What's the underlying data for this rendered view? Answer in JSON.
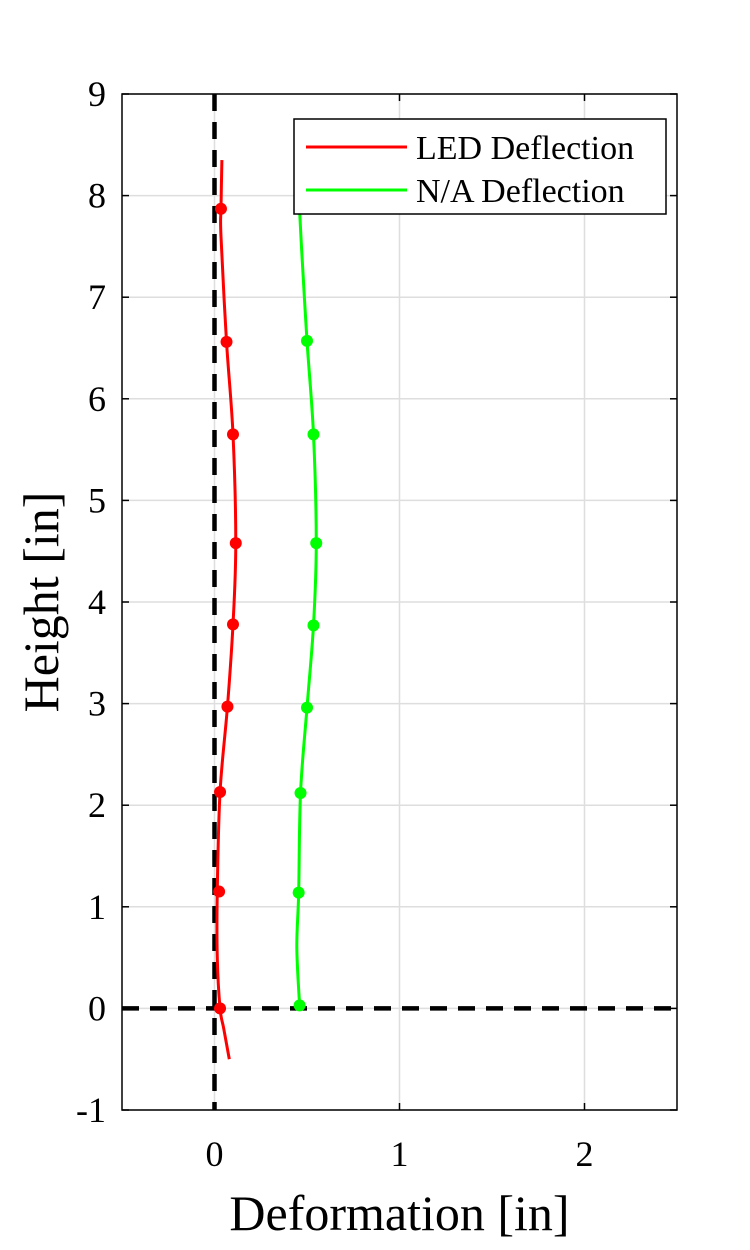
{
  "chart_data": {
    "type": "line",
    "title": "",
    "xlabel": "Deformation [in]",
    "ylabel": "Height [in]",
    "xlim": [
      -0.5,
      2.5
    ],
    "ylim": [
      -1,
      9
    ],
    "xticks": [
      0,
      1,
      2
    ],
    "yticks": [
      -1,
      0,
      1,
      2,
      3,
      4,
      5,
      6,
      7,
      8,
      9
    ],
    "grid": true,
    "legend_position": "top-right",
    "reference_lines": [
      {
        "orientation": "vertical",
        "value": 0,
        "style": "dashed",
        "color": "#000000"
      },
      {
        "orientation": "horizontal",
        "value": 0,
        "style": "dashed",
        "color": "#000000"
      }
    ],
    "series": [
      {
        "name": "LED Deflection",
        "color": "#ff0000",
        "curve": [
          {
            "x": 0.08,
            "y": -0.5
          },
          {
            "x": 0.05,
            "y": -0.2
          },
          {
            "x": 0.03,
            "y": 0.0
          },
          {
            "x": 0.015,
            "y": 0.5
          },
          {
            "x": 0.015,
            "y": 1.15
          },
          {
            "x": 0.03,
            "y": 2.13
          },
          {
            "x": 0.07,
            "y": 2.97
          },
          {
            "x": 0.1,
            "y": 3.78
          },
          {
            "x": 0.115,
            "y": 4.58
          },
          {
            "x": 0.1,
            "y": 5.65
          },
          {
            "x": 0.065,
            "y": 6.56
          },
          {
            "x": 0.035,
            "y": 7.6
          },
          {
            "x": 0.035,
            "y": 7.87
          },
          {
            "x": 0.04,
            "y": 8.35
          }
        ],
        "points": [
          {
            "x": 0.03,
            "y": 0.0
          },
          {
            "x": 0.025,
            "y": 1.15
          },
          {
            "x": 0.03,
            "y": 2.13
          },
          {
            "x": 0.07,
            "y": 2.97
          },
          {
            "x": 0.1,
            "y": 3.78
          },
          {
            "x": 0.115,
            "y": 4.58
          },
          {
            "x": 0.1,
            "y": 5.65
          },
          {
            "x": 0.065,
            "y": 6.56
          },
          {
            "x": 0.035,
            "y": 7.87
          }
        ]
      },
      {
        "name": "N/A Deflection",
        "color": "#00ff00",
        "curve": [
          {
            "x": 0.46,
            "y": 0.03
          },
          {
            "x": 0.445,
            "y": 0.6
          },
          {
            "x": 0.455,
            "y": 1.14
          },
          {
            "x": 0.465,
            "y": 2.12
          },
          {
            "x": 0.5,
            "y": 2.96
          },
          {
            "x": 0.535,
            "y": 3.77
          },
          {
            "x": 0.55,
            "y": 4.58
          },
          {
            "x": 0.535,
            "y": 5.65
          },
          {
            "x": 0.5,
            "y": 6.57
          },
          {
            "x": 0.47,
            "y": 7.5
          },
          {
            "x": 0.46,
            "y": 7.85
          }
        ],
        "points": [
          {
            "x": 0.46,
            "y": 0.03
          },
          {
            "x": 0.455,
            "y": 1.14
          },
          {
            "x": 0.465,
            "y": 2.12
          },
          {
            "x": 0.5,
            "y": 2.96
          },
          {
            "x": 0.535,
            "y": 3.77
          },
          {
            "x": 0.55,
            "y": 4.58
          },
          {
            "x": 0.535,
            "y": 5.65
          },
          {
            "x": 0.5,
            "y": 6.57
          }
        ]
      }
    ]
  }
}
